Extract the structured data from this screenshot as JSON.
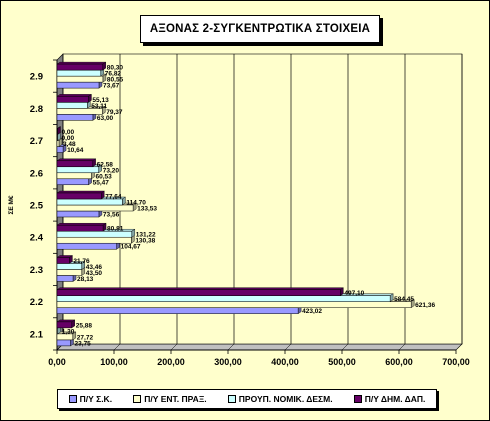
{
  "chart_data": {
    "type": "bar",
    "orientation": "horizontal",
    "title": "ΑΞΟΝΑΣ 2-ΣΥΓΚΕΝΤΡΩΤΙΚΑ ΣΤΟΙΧΕΙΑ",
    "xlabel": "",
    "ylabel": "ΣΕ Μ€",
    "xlim": [
      0,
      700
    ],
    "xticks": [
      "0,00",
      "100,00",
      "200,00",
      "300,00",
      "400,00",
      "500,00",
      "600,00",
      "700,00"
    ],
    "categories": [
      "2.1",
      "2.2",
      "2.3",
      "2.4",
      "2.5",
      "2.6",
      "2.7",
      "2.8",
      "2.9"
    ],
    "series": [
      {
        "name": "Π/Υ Σ.Κ.",
        "color": "#9999ff",
        "values": [
          23.75,
          423.02,
          28.13,
          104.67,
          73.56,
          55.47,
          10.64,
          63.0,
          73.67
        ],
        "labels": [
          "23,75",
          "423,02",
          "28,13",
          "104,67",
          "73,56",
          "55,47",
          "10,64",
          "63,00",
          "73,67"
        ]
      },
      {
        "name": "Π/Υ ΕΝΤ. ΠΡΑΞ.",
        "color": "#ffffcc",
        "values": [
          27.72,
          621.36,
          43.5,
          130.38,
          133.53,
          60.53,
          3.48,
          79.37,
          80.55
        ],
        "labels": [
          "27,72",
          "621,36",
          "43,50",
          "130,38",
          "133,53",
          "60,53",
          "3,48",
          "79,37",
          "80,55"
        ]
      },
      {
        "name": "ΠΡΟΥΠ. ΝΟΜΙΚ. ΔΕΣΜ.",
        "color": "#ccffff",
        "values": [
          1.3,
          584.45,
          43.46,
          131.22,
          114.7,
          73.2,
          0.0,
          53.11,
          76.82
        ],
        "labels": [
          "1,30",
          "584,45",
          "43,46",
          "131,22",
          "114,70",
          "73,20",
          "0,00",
          "53,11",
          "76,82"
        ]
      },
      {
        "name": "Π/Υ ΔΗΜ. ΔΑΠ.",
        "color": "#660066",
        "values": [
          25.88,
          497.1,
          21.76,
          80.81,
          77.64,
          62.58,
          0.0,
          55.13,
          80.3
        ],
        "labels": [
          "25,88",
          "497,10",
          "21,76",
          "80,81",
          "77,64",
          "62,58",
          "0,00",
          "55,13",
          "80,30"
        ]
      }
    ],
    "grid": true,
    "legend": "bottom",
    "colors": {
      "plot_area": "#ffffcc",
      "chart_area": "#ffffcc",
      "wall_side": "#808080",
      "floor": "#c0c0c0"
    }
  }
}
